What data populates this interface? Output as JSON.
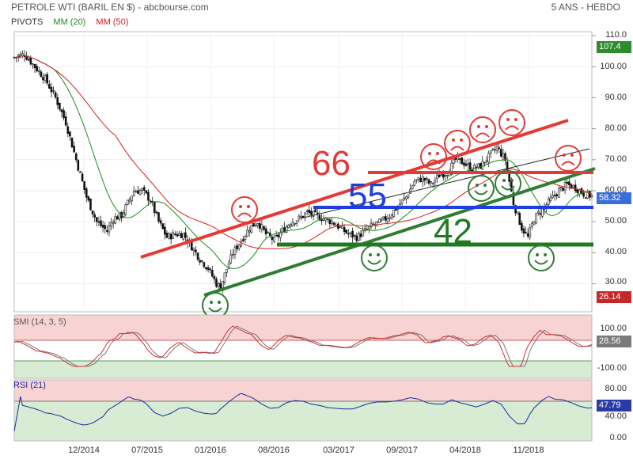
{
  "header": {
    "title": "PETROLE WTI (BARIL EN $) - abcbourse.com",
    "period": "5 ANS - HEBDO"
  },
  "legend": {
    "pivots": "PIVOTS",
    "ma20": "MM (20)",
    "ma50": "MM (50)",
    "colors": {
      "pivots": "#333333",
      "ma20": "#1a8a1a",
      "ma50": "#d42020"
    }
  },
  "chart_data": [
    {
      "type": "candlestick",
      "title": "PETROLE WTI (BARIL EN $)",
      "x_ticks": [
        "12/2014",
        "07/2015",
        "01/2016",
        "08/2016",
        "03/2017",
        "09/2017",
        "04/2018",
        "11/2018"
      ],
      "y_ticks": [
        "110.0",
        "100.00",
        "90.00",
        "80.00",
        "70.00",
        "60.00",
        "50.00",
        "40.00",
        "30.00"
      ],
      "ylim": [
        22,
        112
      ],
      "last_value": "58.32",
      "max_value": "107.4",
      "min_value": "26.14",
      "close_approx": [
        {
          "x": 0,
          "y": 103
        },
        {
          "x": 5,
          "y": 104
        },
        {
          "x": 10,
          "y": 100
        },
        {
          "x": 15,
          "y": 96
        },
        {
          "x": 20,
          "y": 90
        },
        {
          "x": 25,
          "y": 82
        },
        {
          "x": 30,
          "y": 70
        },
        {
          "x": 35,
          "y": 58
        },
        {
          "x": 40,
          "y": 50
        },
        {
          "x": 45,
          "y": 47
        },
        {
          "x": 48,
          "y": 51
        },
        {
          "x": 52,
          "y": 52
        },
        {
          "x": 55,
          "y": 56
        },
        {
          "x": 58,
          "y": 60
        },
        {
          "x": 62,
          "y": 60
        },
        {
          "x": 66,
          "y": 57
        },
        {
          "x": 70,
          "y": 50
        },
        {
          "x": 74,
          "y": 45
        },
        {
          "x": 78,
          "y": 46
        },
        {
          "x": 82,
          "y": 46
        },
        {
          "x": 86,
          "y": 42
        },
        {
          "x": 90,
          "y": 38
        },
        {
          "x": 94,
          "y": 35
        },
        {
          "x": 98,
          "y": 30
        },
        {
          "x": 100,
          "y": 29
        },
        {
          "x": 102,
          "y": 33
        },
        {
          "x": 106,
          "y": 40
        },
        {
          "x": 110,
          "y": 44
        },
        {
          "x": 114,
          "y": 48
        },
        {
          "x": 118,
          "y": 50
        },
        {
          "x": 122,
          "y": 46
        },
        {
          "x": 126,
          "y": 44
        },
        {
          "x": 130,
          "y": 47
        },
        {
          "x": 134,
          "y": 50
        },
        {
          "x": 138,
          "y": 51
        },
        {
          "x": 142,
          "y": 53
        },
        {
          "x": 146,
          "y": 52
        },
        {
          "x": 150,
          "y": 51
        },
        {
          "x": 154,
          "y": 50
        },
        {
          "x": 158,
          "y": 48
        },
        {
          "x": 162,
          "y": 46
        },
        {
          "x": 166,
          "y": 45
        },
        {
          "x": 170,
          "y": 47
        },
        {
          "x": 174,
          "y": 49
        },
        {
          "x": 178,
          "y": 50
        },
        {
          "x": 182,
          "y": 52
        },
        {
          "x": 186,
          "y": 55
        },
        {
          "x": 190,
          "y": 58
        },
        {
          "x": 194,
          "y": 63
        },
        {
          "x": 198,
          "y": 64
        },
        {
          "x": 202,
          "y": 62
        },
        {
          "x": 206,
          "y": 65
        },
        {
          "x": 210,
          "y": 66
        },
        {
          "x": 214,
          "y": 70
        },
        {
          "x": 218,
          "y": 69
        },
        {
          "x": 222,
          "y": 67
        },
        {
          "x": 226,
          "y": 68
        },
        {
          "x": 230,
          "y": 71
        },
        {
          "x": 234,
          "y": 74
        },
        {
          "x": 238,
          "y": 70
        },
        {
          "x": 242,
          "y": 56
        },
        {
          "x": 246,
          "y": 48
        },
        {
          "x": 249,
          "y": 45
        },
        {
          "x": 252,
          "y": 51
        },
        {
          "x": 256,
          "y": 54
        },
        {
          "x": 260,
          "y": 57
        },
        {
          "x": 264,
          "y": 60
        },
        {
          "x": 268,
          "y": 62
        },
        {
          "x": 272,
          "y": 61
        },
        {
          "x": 276,
          "y": 59
        },
        {
          "x": 280,
          "y": 58.3
        }
      ]
    },
    {
      "type": "line",
      "title": "SMI (14, 3, 5)",
      "y_ticks": [
        "100.00",
        "-100.00"
      ],
      "ylim": [
        -115,
        125
      ],
      "last_value": "28.56"
    },
    {
      "type": "line",
      "title": "RSI (21)",
      "y_ticks": [
        "80.00",
        "40.00",
        "0.00"
      ],
      "ylim": [
        -5,
        93
      ],
      "last_value": "47.79"
    }
  ],
  "annotations": {
    "resistance_label": "66",
    "mid_label": "55",
    "support_label": "42"
  }
}
